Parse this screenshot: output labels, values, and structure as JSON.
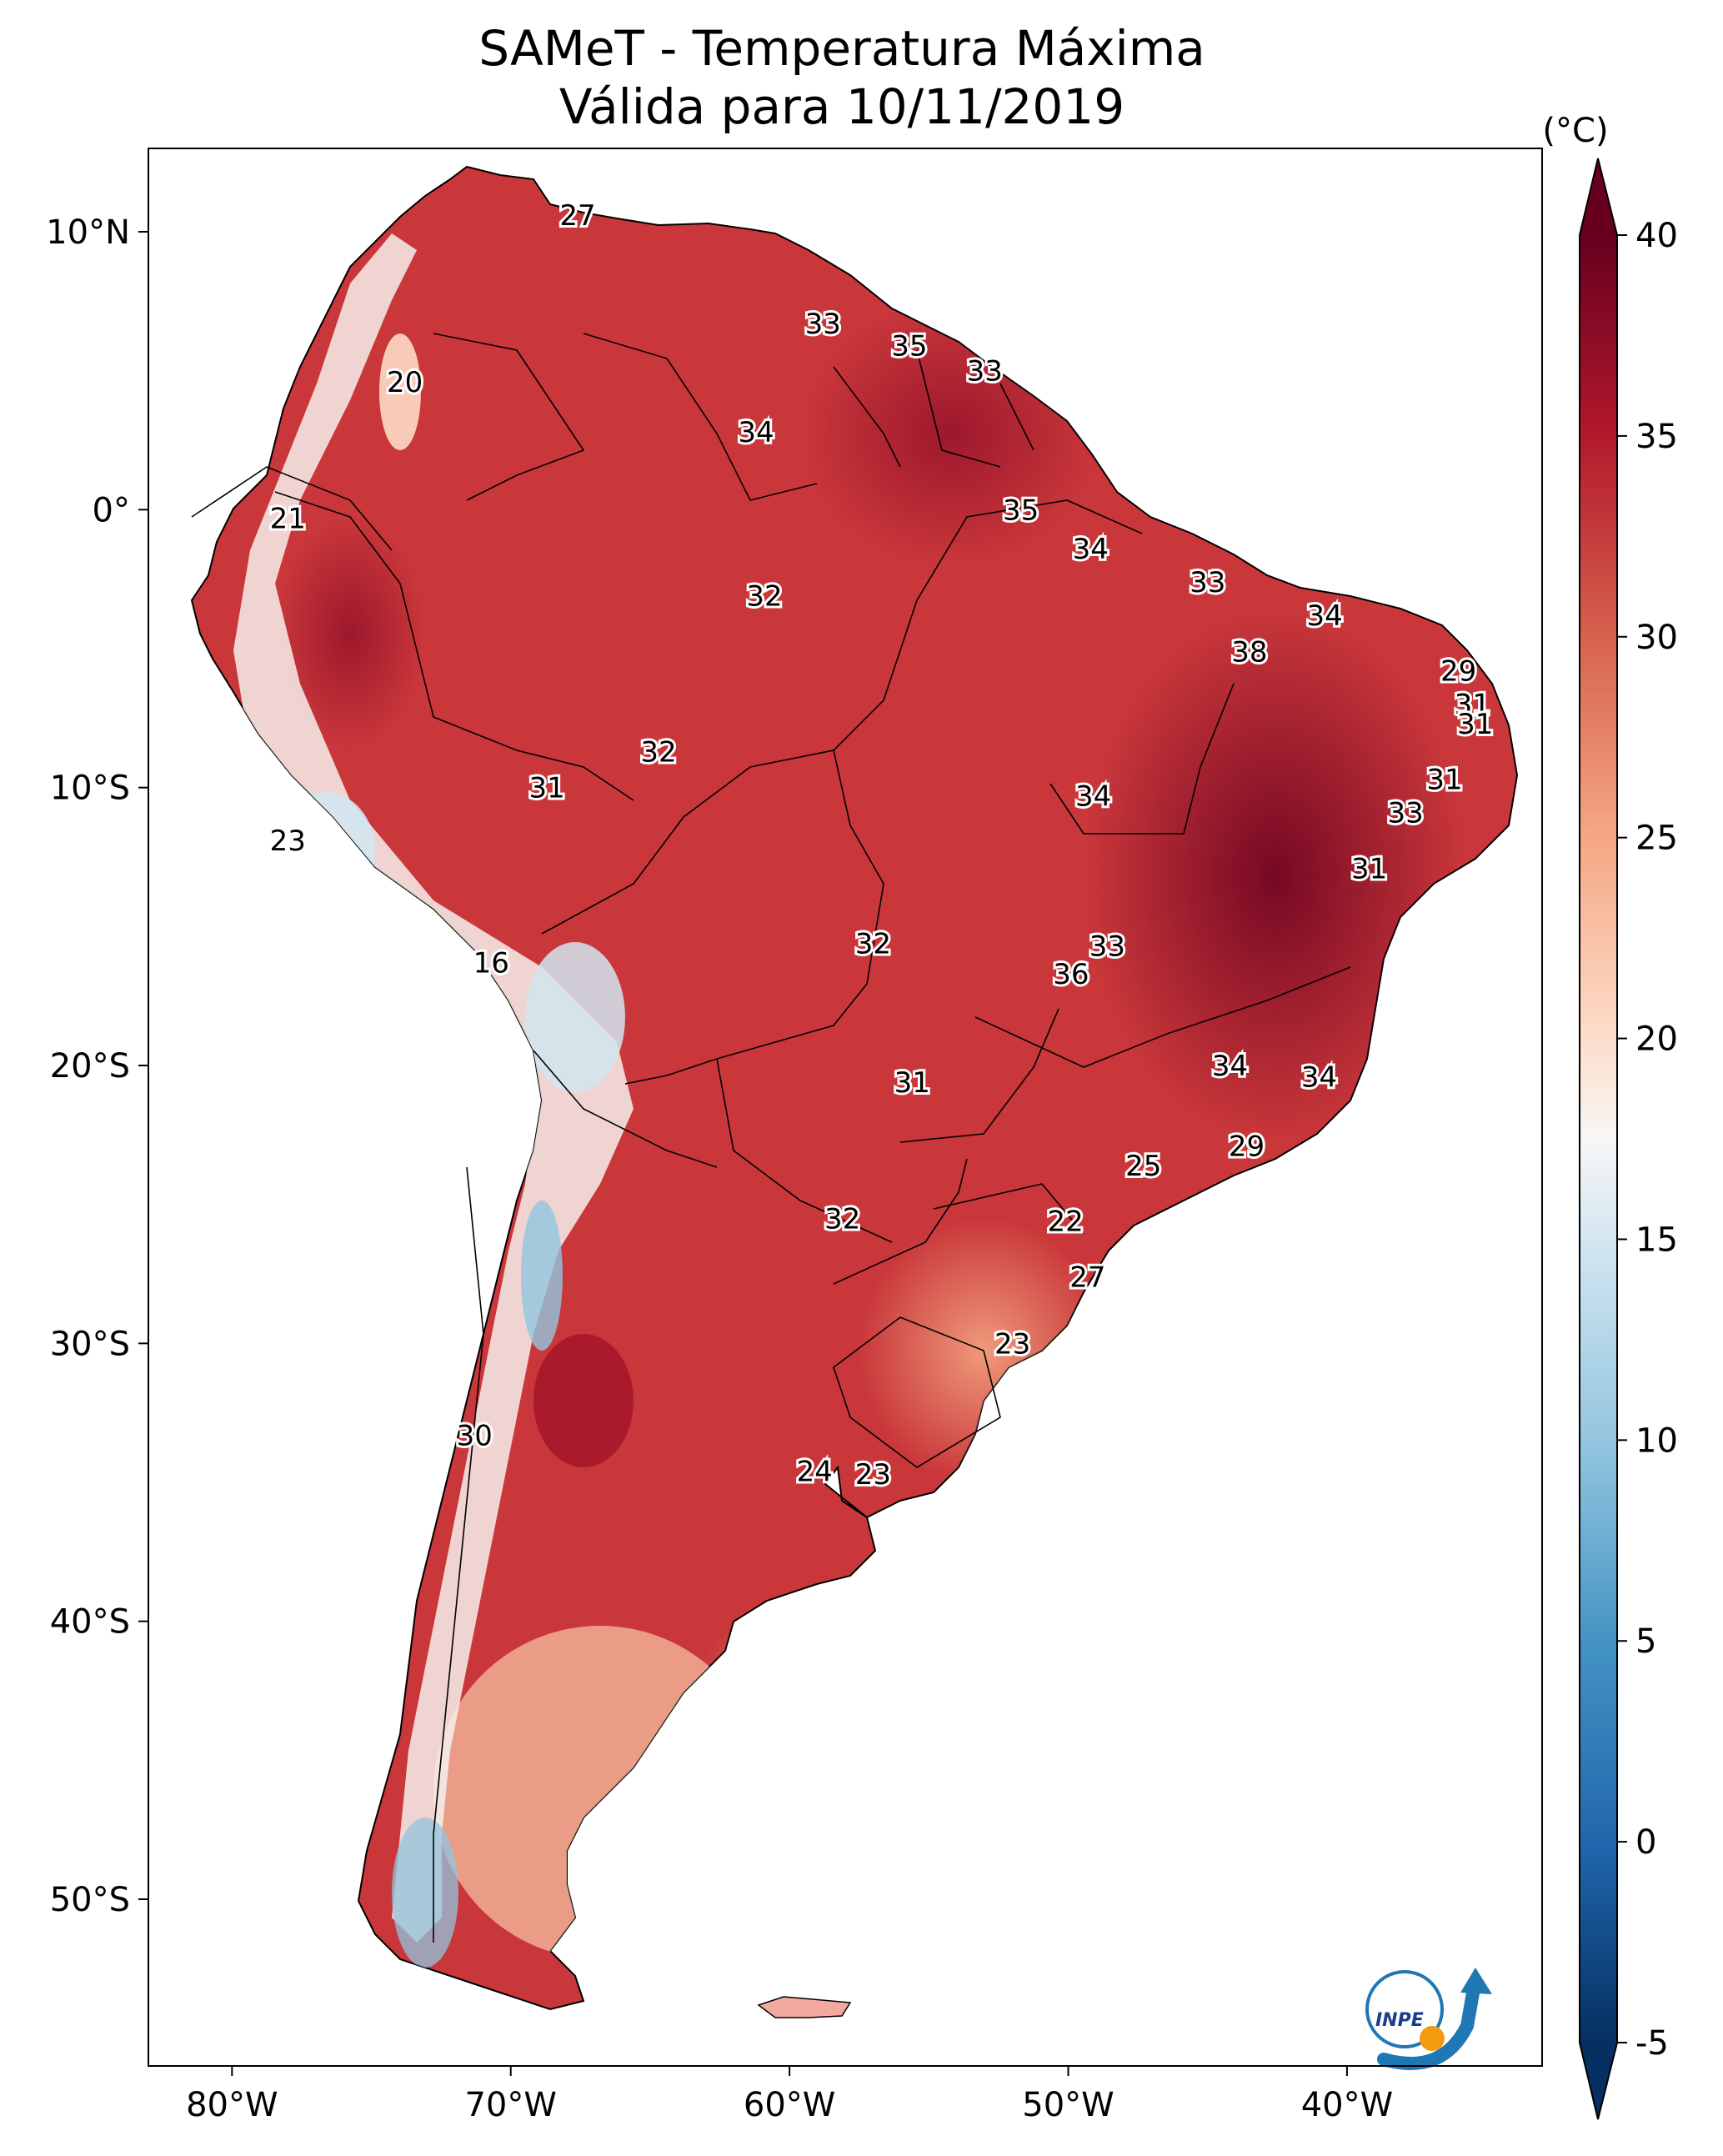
{
  "title": {
    "line1": "SAMeT - Temperatura Máxima",
    "line2": "Válida para 10/11/2019"
  },
  "map": {
    "lon_range": [
      -83,
      -33
    ],
    "lat_range": [
      -56,
      13
    ],
    "x_ticks": [
      {
        "lon": -80,
        "label": "80°W"
      },
      {
        "lon": -70,
        "label": "70°W"
      },
      {
        "lon": -60,
        "label": "60°W"
      },
      {
        "lon": -50,
        "label": "50°W"
      },
      {
        "lon": -40,
        "label": "40°W"
      }
    ],
    "y_ticks": [
      {
        "lat": 10,
        "label": "10°N"
      },
      {
        "lat": 0,
        "label": "0°"
      },
      {
        "lat": -10,
        "label": "10°S"
      },
      {
        "lat": -20,
        "label": "20°S"
      },
      {
        "lat": -30,
        "label": "30°S"
      },
      {
        "lat": -40,
        "label": "40°S"
      },
      {
        "lat": -50,
        "label": "50°S"
      }
    ],
    "temperature_labels": [
      {
        "value": "27",
        "lon": -67.6,
        "lat": 10.6
      },
      {
        "value": "33",
        "lon": -58.8,
        "lat": 6.7
      },
      {
        "value": "35",
        "lon": -55.7,
        "lat": 5.9
      },
      {
        "value": "33",
        "lon": -53.0,
        "lat": 5.0
      },
      {
        "value": "20",
        "lon": -73.8,
        "lat": 4.6
      },
      {
        "value": "34",
        "lon": -61.2,
        "lat": 2.8
      },
      {
        "value": "21",
        "lon": -78.0,
        "lat": -0.3
      },
      {
        "value": "35",
        "lon": -51.7,
        "lat": -0.0
      },
      {
        "value": "34",
        "lon": -49.2,
        "lat": -1.4
      },
      {
        "value": "33",
        "lon": -45.0,
        "lat": -2.6
      },
      {
        "value": "32",
        "lon": -60.9,
        "lat": -3.1
      },
      {
        "value": "34",
        "lon": -40.8,
        "lat": -3.8
      },
      {
        "value": "38",
        "lon": -43.5,
        "lat": -5.1
      },
      {
        "value": "29",
        "lon": -36.0,
        "lat": -5.8
      },
      {
        "value": "31",
        "lon": -35.5,
        "lat": -7.0
      },
      {
        "value": "31",
        "lon": -35.4,
        "lat": -7.7
      },
      {
        "value": "32",
        "lon": -64.7,
        "lat": -8.7
      },
      {
        "value": "31",
        "lon": -36.5,
        "lat": -9.7
      },
      {
        "value": "34",
        "lon": -49.1,
        "lat": -10.3
      },
      {
        "value": "31",
        "lon": -68.7,
        "lat": -10.0
      },
      {
        "value": "33",
        "lon": -37.9,
        "lat": -10.9
      },
      {
        "value": "23",
        "lon": -78.0,
        "lat": -11.9
      },
      {
        "value": "31",
        "lon": -39.2,
        "lat": -12.9
      },
      {
        "value": "32",
        "lon": -57.0,
        "lat": -15.6
      },
      {
        "value": "33",
        "lon": -48.6,
        "lat": -15.7
      },
      {
        "value": "16",
        "lon": -70.7,
        "lat": -16.3
      },
      {
        "value": "36",
        "lon": -49.9,
        "lat": -16.7
      },
      {
        "value": "34",
        "lon": -44.2,
        "lat": -20.0
      },
      {
        "value": "34",
        "lon": -41.0,
        "lat": -20.4
      },
      {
        "value": "31",
        "lon": -55.6,
        "lat": -20.6
      },
      {
        "value": "29",
        "lon": -43.6,
        "lat": -22.9
      },
      {
        "value": "25",
        "lon": -47.3,
        "lat": -23.6
      },
      {
        "value": "22",
        "lon": -50.1,
        "lat": -25.6
      },
      {
        "value": "32",
        "lon": -58.1,
        "lat": -25.5
      },
      {
        "value": "27",
        "lon": -49.3,
        "lat": -27.6
      },
      {
        "value": "23",
        "lon": -52.0,
        "lat": -30.0
      },
      {
        "value": "30",
        "lon": -71.3,
        "lat": -33.3
      },
      {
        "value": "24",
        "lon": -59.1,
        "lat": -34.6
      },
      {
        "value": "23",
        "lon": -57.0,
        "lat": -34.7
      }
    ]
  },
  "colorbar": {
    "unit": "(°C)",
    "min": -5,
    "max": 40,
    "ticks": [
      "40",
      "35",
      "30",
      "25",
      "20",
      "15",
      "10",
      "5",
      "0",
      "-5"
    ],
    "colors": {
      "t_m5": "#053061",
      "t_0": "#2166ac",
      "t_5": "#4393c3",
      "t_10": "#92c5de",
      "t_15": "#d1e5f0",
      "t_17_5": "#f7f7f7",
      "t_20": "#fddbc7",
      "t_25": "#f4a582",
      "t_30": "#d6604d",
      "t_35": "#b2182b",
      "t_40": "#67001f"
    }
  },
  "logo": {
    "text": "INPE"
  }
}
